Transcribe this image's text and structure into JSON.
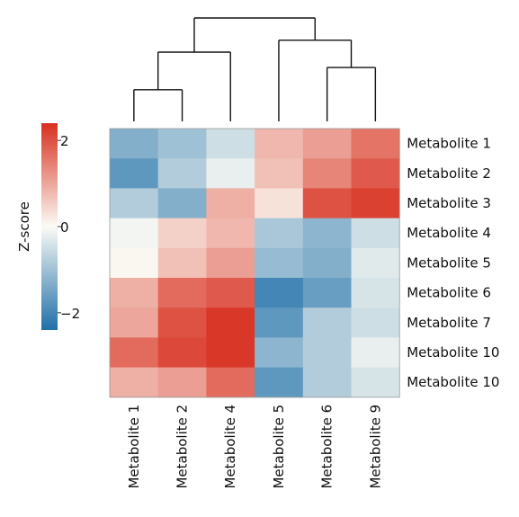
{
  "chart_data": {
    "type": "heatmap",
    "title": "",
    "row_labels": [
      "Metabolite 1",
      "Metabolite 2",
      "Metabolite 3",
      "Metabolite 4",
      "Metabolite 5",
      "Metabolite 6",
      "Metabolite 7",
      "Metabolite 10",
      "Metabolite 10"
    ],
    "col_labels": [
      "Metabolite 1",
      "Metabolite 2",
      "Metabolite 4",
      "Metabolite 5",
      "Metabolite 6",
      "Metabolite 9"
    ],
    "values": [
      [
        -1.3,
        -1.0,
        -0.5,
        0.8,
        1.1,
        1.6
      ],
      [
        -1.7,
        -0.8,
        -0.2,
        0.7,
        1.4,
        1.9
      ],
      [
        -0.8,
        -1.3,
        0.9,
        0.3,
        2.0,
        2.2
      ],
      [
        -0.1,
        0.5,
        0.8,
        -0.9,
        -1.2,
        -0.5
      ],
      [
        0.05,
        0.7,
        1.1,
        -1.1,
        -1.3,
        -0.3
      ],
      [
        0.9,
        1.7,
        1.9,
        -2.0,
        -1.6,
        -0.4
      ],
      [
        1.0,
        2.0,
        2.3,
        -1.7,
        -0.8,
        -0.5
      ],
      [
        1.7,
        2.1,
        2.3,
        -1.2,
        -0.8,
        -0.2
      ],
      [
        0.9,
        1.1,
        1.7,
        -1.7,
        -0.8,
        -0.4
      ]
    ],
    "colorbar": {
      "label": "Z-score",
      "ticks": [
        2,
        0,
        -2
      ],
      "tick_labels": [
        "2",
        "0",
        "−2"
      ],
      "min": -2.4,
      "max": 2.4,
      "colors": {
        "low": "#1f6fa8",
        "mid": "#fbfbf5",
        "high": "#d7301f"
      }
    },
    "column_dendrogram": {
      "merges": [
        {
          "left": "c0",
          "right": "c1",
          "height": 0.16
        },
        {
          "left": "c4",
          "right": "c5",
          "height": 0.42
        },
        {
          "left": "m1",
          "right": "c2",
          "height": 0.6
        },
        {
          "left": "c3",
          "right": "m2",
          "height": 0.74
        },
        {
          "left": "m3",
          "right": "m4",
          "height": 1.0
        }
      ]
    }
  }
}
